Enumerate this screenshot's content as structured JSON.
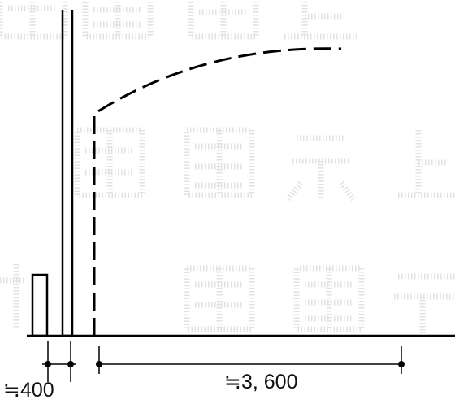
{
  "dimensions": {
    "left_gap_label": "≒400",
    "span_label": "≒3, 600"
  },
  "watermark": {
    "text": "転載禁止"
  }
}
